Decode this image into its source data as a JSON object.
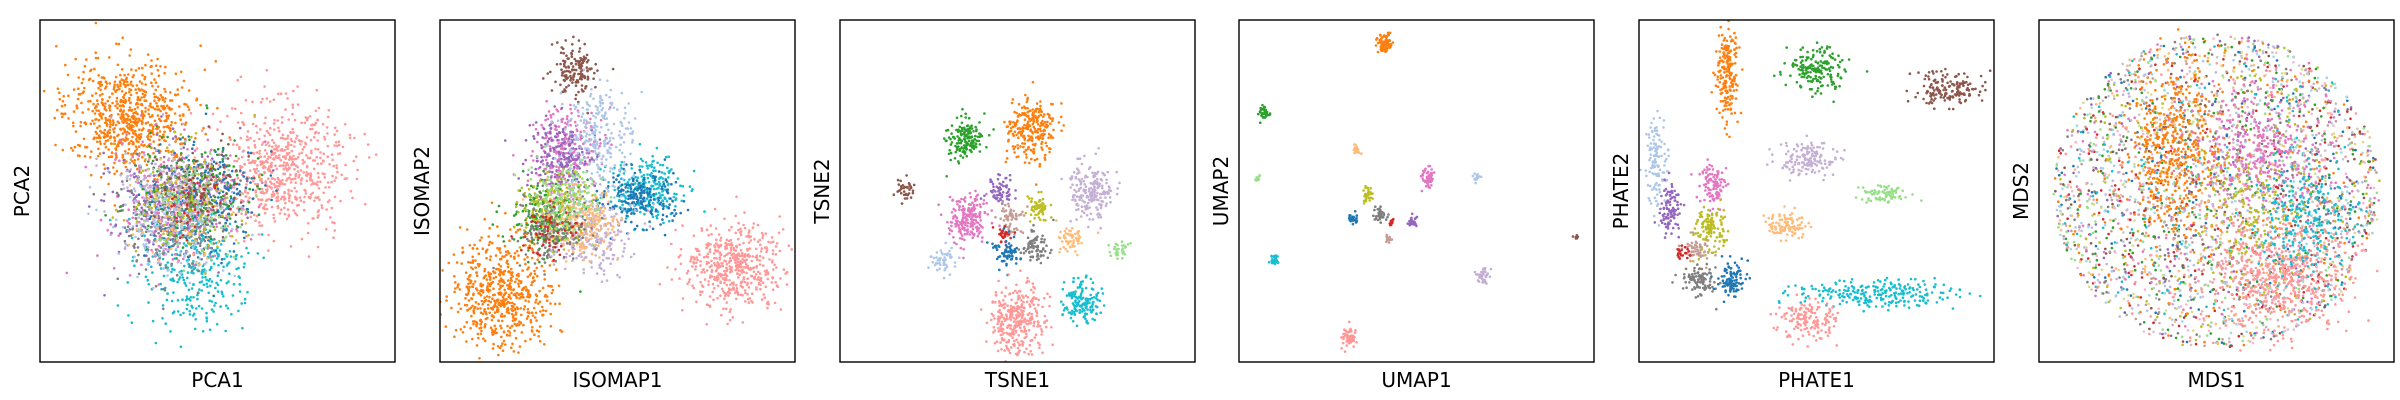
{
  "palette": [
    "#1f77b4",
    "#aec7e8",
    "#ff7f0e",
    "#ffbb78",
    "#2ca02c",
    "#98df8a",
    "#d62728",
    "#ff9896",
    "#9467bd",
    "#c5b0d5",
    "#8c564b",
    "#c49c94",
    "#e377c2",
    "#f7b6d2",
    "#7f7f7f",
    "#c7c7c7",
    "#bcbd22",
    "#dbdb8d",
    "#17becf",
    "#9edae5"
  ],
  "chart_data": [
    {
      "type": "scatter",
      "title": "",
      "xlabel": "PCA1",
      "ylabel": "PCA2",
      "xticks": [],
      "yticks": [],
      "grid": false,
      "clusters": [
        {
          "color": "#ff7f0e",
          "center": [
            0.25,
            0.28
          ],
          "spread": [
            0.09,
            0.08
          ],
          "n": 700
        },
        {
          "color": "#ff9896",
          "center": [
            0.68,
            0.43
          ],
          "spread": [
            0.09,
            0.09
          ],
          "n": 650
        },
        {
          "color": "#17becf",
          "center": [
            0.43,
            0.72
          ],
          "spread": [
            0.07,
            0.09
          ],
          "n": 350
        },
        {
          "color": "#e377c2",
          "center": [
            0.38,
            0.55
          ],
          "spread": [
            0.09,
            0.09
          ],
          "n": 300
        },
        {
          "color": "#9467bd",
          "center": [
            0.36,
            0.52
          ],
          "spread": [
            0.09,
            0.08
          ],
          "n": 250
        },
        {
          "color": "#1f77b4",
          "center": [
            0.46,
            0.52
          ],
          "spread": [
            0.08,
            0.08
          ],
          "n": 250
        },
        {
          "color": "#2ca02c",
          "center": [
            0.42,
            0.5
          ],
          "spread": [
            0.08,
            0.08
          ],
          "n": 200
        },
        {
          "color": "#7f7f7f",
          "center": [
            0.38,
            0.58
          ],
          "spread": [
            0.08,
            0.08
          ],
          "n": 200
        },
        {
          "color": "#aec7e8",
          "center": [
            0.36,
            0.58
          ],
          "spread": [
            0.08,
            0.08
          ],
          "n": 200
        },
        {
          "color": "#bcbd22",
          "center": [
            0.4,
            0.52
          ],
          "spread": [
            0.08,
            0.08
          ],
          "n": 150
        },
        {
          "color": "#c5b0d5",
          "center": [
            0.38,
            0.5
          ],
          "spread": [
            0.08,
            0.08
          ],
          "n": 150
        },
        {
          "color": "#8c564b",
          "center": [
            0.45,
            0.48
          ],
          "spread": [
            0.06,
            0.07
          ],
          "n": 80
        },
        {
          "color": "#98df8a",
          "center": [
            0.44,
            0.56
          ],
          "spread": [
            0.07,
            0.07
          ],
          "n": 80
        },
        {
          "color": "#ffbb78",
          "center": [
            0.4,
            0.56
          ],
          "spread": [
            0.07,
            0.07
          ],
          "n": 80
        },
        {
          "color": "#d62728",
          "center": [
            0.44,
            0.55
          ],
          "spread": [
            0.05,
            0.05
          ],
          "n": 40
        }
      ]
    },
    {
      "type": "scatter",
      "title": "",
      "xlabel": "ISOMAP1",
      "ylabel": "ISOMAP2",
      "xticks": [],
      "yticks": [],
      "grid": false,
      "clusters": [
        {
          "color": "#ff7f0e",
          "center": [
            0.17,
            0.8
          ],
          "spread": [
            0.07,
            0.08
          ],
          "n": 600
        },
        {
          "color": "#ff9896",
          "center": [
            0.83,
            0.72
          ],
          "spread": [
            0.07,
            0.06
          ],
          "n": 500
        },
        {
          "color": "#8c564b",
          "center": [
            0.38,
            0.14
          ],
          "spread": [
            0.03,
            0.04
          ],
          "n": 150
        },
        {
          "color": "#e377c2",
          "center": [
            0.36,
            0.38
          ],
          "spread": [
            0.05,
            0.06
          ],
          "n": 250
        },
        {
          "color": "#9467bd",
          "center": [
            0.34,
            0.4
          ],
          "spread": [
            0.05,
            0.05
          ],
          "n": 200
        },
        {
          "color": "#17becf",
          "center": [
            0.58,
            0.5
          ],
          "spread": [
            0.05,
            0.05
          ],
          "n": 250
        },
        {
          "color": "#1f77b4",
          "center": [
            0.56,
            0.52
          ],
          "spread": [
            0.05,
            0.04
          ],
          "n": 200
        },
        {
          "color": "#2ca02c",
          "center": [
            0.3,
            0.58
          ],
          "spread": [
            0.05,
            0.05
          ],
          "n": 250
        },
        {
          "color": "#bcbd22",
          "center": [
            0.33,
            0.55
          ],
          "spread": [
            0.05,
            0.05
          ],
          "n": 200
        },
        {
          "color": "#aec7e8",
          "center": [
            0.45,
            0.35
          ],
          "spread": [
            0.05,
            0.08
          ],
          "n": 250
        },
        {
          "color": "#c5b0d5",
          "center": [
            0.42,
            0.62
          ],
          "spread": [
            0.06,
            0.06
          ],
          "n": 250
        },
        {
          "color": "#ffbb78",
          "center": [
            0.4,
            0.6
          ],
          "spread": [
            0.05,
            0.05
          ],
          "n": 200
        },
        {
          "color": "#7f7f7f",
          "center": [
            0.32,
            0.62
          ],
          "spread": [
            0.05,
            0.05
          ],
          "n": 150
        },
        {
          "color": "#98df8a",
          "center": [
            0.35,
            0.52
          ],
          "spread": [
            0.05,
            0.05
          ],
          "n": 150
        },
        {
          "color": "#d62728",
          "center": [
            0.3,
            0.62
          ],
          "spread": [
            0.04,
            0.04
          ],
          "n": 60
        }
      ]
    },
    {
      "type": "scatter",
      "title": "",
      "xlabel": "TSNE1",
      "ylabel": "TSNE2",
      "xticks": [],
      "yticks": [],
      "grid": false,
      "clusters": [
        {
          "color": "#2ca02c",
          "center": [
            0.35,
            0.35
          ],
          "spread": [
            0.025,
            0.03
          ],
          "n": 160
        },
        {
          "color": "#ff7f0e",
          "center": [
            0.54,
            0.32
          ],
          "spread": [
            0.035,
            0.045
          ],
          "n": 260
        },
        {
          "color": "#8c564b",
          "center": [
            0.18,
            0.5
          ],
          "spread": [
            0.012,
            0.015
          ],
          "n": 40
        },
        {
          "color": "#9467bd",
          "center": [
            0.45,
            0.5
          ],
          "spread": [
            0.018,
            0.025
          ],
          "n": 60
        },
        {
          "color": "#c5b0d5",
          "center": [
            0.71,
            0.5
          ],
          "spread": [
            0.03,
            0.04
          ],
          "n": 200
        },
        {
          "color": "#e377c2",
          "center": [
            0.36,
            0.58
          ],
          "spread": [
            0.03,
            0.035
          ],
          "n": 200
        },
        {
          "color": "#c49c94",
          "center": [
            0.48,
            0.58
          ],
          "spread": [
            0.015,
            0.02
          ],
          "n": 60
        },
        {
          "color": "#bcbd22",
          "center": [
            0.56,
            0.55
          ],
          "spread": [
            0.015,
            0.02
          ],
          "n": 60
        },
        {
          "color": "#d62728",
          "center": [
            0.46,
            0.63
          ],
          "spread": [
            0.012,
            0.012
          ],
          "n": 25
        },
        {
          "color": "#7f7f7f",
          "center": [
            0.55,
            0.66
          ],
          "spread": [
            0.02,
            0.025
          ],
          "n": 80
        },
        {
          "color": "#ffbb78",
          "center": [
            0.65,
            0.64
          ],
          "spread": [
            0.018,
            0.02
          ],
          "n": 60
        },
        {
          "color": "#98df8a",
          "center": [
            0.79,
            0.67
          ],
          "spread": [
            0.012,
            0.012
          ],
          "n": 30
        },
        {
          "color": "#1f77b4",
          "center": [
            0.47,
            0.68
          ],
          "spread": [
            0.02,
            0.025
          ],
          "n": 70
        },
        {
          "color": "#aec7e8",
          "center": [
            0.29,
            0.7
          ],
          "spread": [
            0.018,
            0.02
          ],
          "n": 50
        },
        {
          "color": "#17becf",
          "center": [
            0.68,
            0.82
          ],
          "spread": [
            0.025,
            0.03
          ],
          "n": 150
        },
        {
          "color": "#ff9896",
          "center": [
            0.5,
            0.88
          ],
          "spread": [
            0.04,
            0.05
          ],
          "n": 320
        }
      ]
    },
    {
      "type": "scatter",
      "title": "",
      "xlabel": "UMAP1",
      "ylabel": "UMAP2",
      "xticks": [],
      "yticks": [],
      "grid": false,
      "clusters": [
        {
          "color": "#ff7f0e",
          "center": [
            0.41,
            0.07
          ],
          "spread": [
            0.01,
            0.015
          ],
          "n": 80
        },
        {
          "color": "#2ca02c",
          "center": [
            0.07,
            0.27
          ],
          "spread": [
            0.008,
            0.01
          ],
          "n": 40
        },
        {
          "color": "#ffbb78",
          "center": [
            0.33,
            0.38
          ],
          "spread": [
            0.006,
            0.008
          ],
          "n": 20
        },
        {
          "color": "#e377c2",
          "center": [
            0.53,
            0.46
          ],
          "spread": [
            0.01,
            0.014
          ],
          "n": 50
        },
        {
          "color": "#aec7e8",
          "center": [
            0.67,
            0.46
          ],
          "spread": [
            0.006,
            0.006
          ],
          "n": 20
        },
        {
          "color": "#98df8a",
          "center": [
            0.05,
            0.46
          ],
          "spread": [
            0.004,
            0.005
          ],
          "n": 10
        },
        {
          "color": "#bcbd22",
          "center": [
            0.36,
            0.51
          ],
          "spread": [
            0.008,
            0.01
          ],
          "n": 30
        },
        {
          "color": "#1f77b4",
          "center": [
            0.32,
            0.58
          ],
          "spread": [
            0.007,
            0.008
          ],
          "n": 30
        },
        {
          "color": "#7f7f7f",
          "center": [
            0.4,
            0.57
          ],
          "spread": [
            0.01,
            0.01
          ],
          "n": 40
        },
        {
          "color": "#9467bd",
          "center": [
            0.49,
            0.59
          ],
          "spread": [
            0.006,
            0.007
          ],
          "n": 25
        },
        {
          "color": "#d62728",
          "center": [
            0.43,
            0.59
          ],
          "spread": [
            0.004,
            0.005
          ],
          "n": 10
        },
        {
          "color": "#c49c94",
          "center": [
            0.42,
            0.64
          ],
          "spread": [
            0.005,
            0.006
          ],
          "n": 15
        },
        {
          "color": "#8c564b",
          "center": [
            0.95,
            0.64
          ],
          "spread": [
            0.004,
            0.004
          ],
          "n": 8
        },
        {
          "color": "#17becf",
          "center": [
            0.1,
            0.7
          ],
          "spread": [
            0.008,
            0.01
          ],
          "n": 30
        },
        {
          "color": "#c5b0d5",
          "center": [
            0.69,
            0.75
          ],
          "spread": [
            0.01,
            0.012
          ],
          "n": 40
        },
        {
          "color": "#ff9896",
          "center": [
            0.31,
            0.93
          ],
          "spread": [
            0.01,
            0.014
          ],
          "n": 60
        }
      ]
    },
    {
      "type": "scatter",
      "title": "",
      "xlabel": "PHATE1",
      "ylabel": "PHATE2",
      "xticks": [],
      "yticks": [],
      "grid": false,
      "clusters": [
        {
          "color": "#ff7f0e",
          "center": [
            0.25,
            0.15
          ],
          "spread": [
            0.015,
            0.07
          ],
          "n": 200
        },
        {
          "color": "#2ca02c",
          "center": [
            0.5,
            0.14
          ],
          "spread": [
            0.04,
            0.03
          ],
          "n": 180
        },
        {
          "color": "#8c564b",
          "center": [
            0.87,
            0.2
          ],
          "spread": [
            0.05,
            0.025
          ],
          "n": 160
        },
        {
          "color": "#aec7e8",
          "center": [
            0.05,
            0.42
          ],
          "spread": [
            0.015,
            0.07
          ],
          "n": 120
        },
        {
          "color": "#9467bd",
          "center": [
            0.09,
            0.55
          ],
          "spread": [
            0.015,
            0.035
          ],
          "n": 100
        },
        {
          "color": "#e377c2",
          "center": [
            0.21,
            0.48
          ],
          "spread": [
            0.02,
            0.03
          ],
          "n": 100
        },
        {
          "color": "#c5b0d5",
          "center": [
            0.47,
            0.41
          ],
          "spread": [
            0.04,
            0.025
          ],
          "n": 150
        },
        {
          "color": "#98df8a",
          "center": [
            0.68,
            0.51
          ],
          "spread": [
            0.035,
            0.015
          ],
          "n": 80
        },
        {
          "color": "#ffbb78",
          "center": [
            0.42,
            0.6
          ],
          "spread": [
            0.03,
            0.02
          ],
          "n": 100
        },
        {
          "color": "#bcbd22",
          "center": [
            0.2,
            0.61
          ],
          "spread": [
            0.02,
            0.03
          ],
          "n": 120
        },
        {
          "color": "#c49c94",
          "center": [
            0.16,
            0.67
          ],
          "spread": [
            0.02,
            0.02
          ],
          "n": 60
        },
        {
          "color": "#d62728",
          "center": [
            0.12,
            0.68
          ],
          "spread": [
            0.012,
            0.01
          ],
          "n": 20
        },
        {
          "color": "#7f7f7f",
          "center": [
            0.17,
            0.76
          ],
          "spread": [
            0.025,
            0.02
          ],
          "n": 100
        },
        {
          "color": "#1f77b4",
          "center": [
            0.26,
            0.76
          ],
          "spread": [
            0.02,
            0.025
          ],
          "n": 100
        },
        {
          "color": "#17becf",
          "center": [
            0.66,
            0.8
          ],
          "spread": [
            0.11,
            0.02
          ],
          "n": 250
        },
        {
          "color": "#ff9896",
          "center": [
            0.48,
            0.88
          ],
          "spread": [
            0.04,
            0.03
          ],
          "n": 150
        }
      ]
    },
    {
      "type": "scatter",
      "title": "",
      "xlabel": "MDS1",
      "ylabel": "MDS2",
      "xticks": [],
      "yticks": [],
      "grid": false,
      "background_disc": {
        "center": [
          0.5,
          0.5
        ],
        "radius": [
          0.46,
          0.46
        ],
        "n": 3200
      },
      "clusters": [
        {
          "color": "#ff7f0e",
          "center": [
            0.38,
            0.38
          ],
          "spread": [
            0.06,
            0.12
          ],
          "n": 450
        },
        {
          "color": "#e377c2",
          "center": [
            0.62,
            0.38
          ],
          "spread": [
            0.1,
            0.08
          ],
          "n": 350
        },
        {
          "color": "#ff9896",
          "center": [
            0.68,
            0.74
          ],
          "spread": [
            0.1,
            0.08
          ],
          "n": 600
        },
        {
          "color": "#17becf",
          "center": [
            0.75,
            0.58
          ],
          "spread": [
            0.07,
            0.08
          ],
          "n": 250
        },
        {
          "color": "#bcbd22",
          "center": [
            0.58,
            0.55
          ],
          "spread": [
            0.08,
            0.08
          ],
          "n": 150
        }
      ]
    }
  ]
}
